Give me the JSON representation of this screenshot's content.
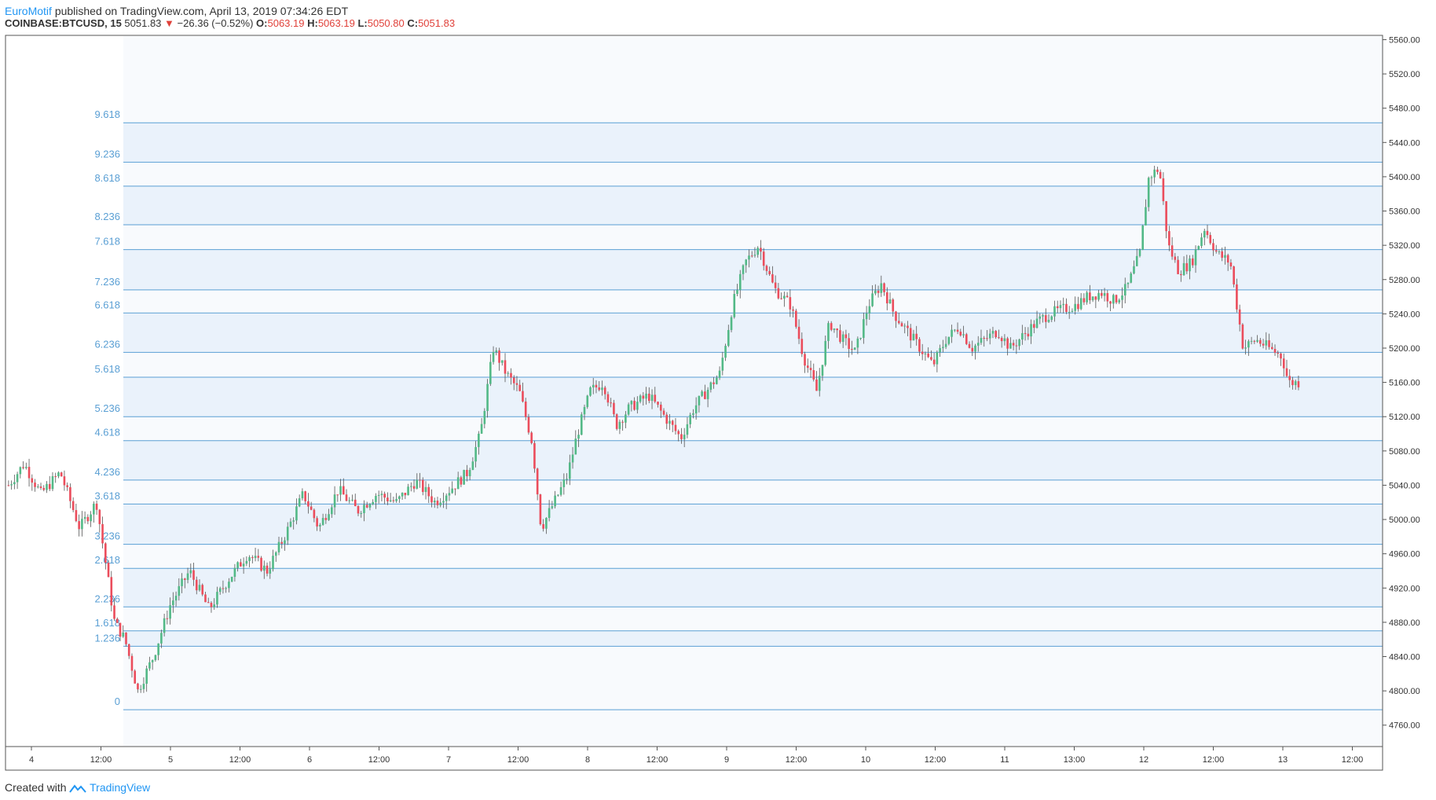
{
  "header": {
    "author": "EuroMotif",
    "published_text": "published on TradingView.com, April 13, 2019 07:34:26 EDT",
    "symbol": "COINBASE:BTCUSD, 15",
    "last_price": "5051.83",
    "change_arrow": "▼",
    "change": "−26.36 (−0.52%)",
    "open_label": "O:",
    "open": "5063.19",
    "high_label": "H:",
    "high": "5063.19",
    "low_label": "L:",
    "low": "5050.80",
    "close_label": "C:",
    "close": "5051.83"
  },
  "footer": {
    "created_with": "Created with",
    "brand": "TradingView"
  },
  "colors": {
    "up": "#53b987",
    "down": "#eb4d5c",
    "fib_line": "#5a9fd4",
    "fib_band": "#eaf2fb",
    "plot_bg": "#f8fafd",
    "axis": "#555555"
  },
  "chart_data": {
    "type": "candlestick",
    "title": "",
    "y_ticks": [
      "5560.00",
      "5520.00",
      "5480.00",
      "5440.00",
      "5400.00",
      "5360.00",
      "5320.00",
      "5280.00",
      "5240.00",
      "5200.00",
      "5160.00",
      "5120.00",
      "5080.00",
      "5040.00",
      "5000.00",
      "4960.00",
      "4920.00",
      "4880.00",
      "4840.00",
      "4800.00",
      "4760.00"
    ],
    "y_range": [
      4735,
      5565
    ],
    "x_ticks": [
      "4",
      "12:00",
      "5",
      "12:00",
      "6",
      "12:00",
      "7",
      "12:00",
      "8",
      "12:00",
      "9",
      "12:00",
      "10",
      "12:00",
      "11",
      "13:00",
      "12",
      "12:00",
      "13",
      "12:00"
    ],
    "fib_levels": [
      {
        "label": "0",
        "price": 4778
      },
      {
        "label": "1.236",
        "price": 4852
      },
      {
        "label": "1.618",
        "price": 4870
      },
      {
        "label": "2.236",
        "price": 4898
      },
      {
        "label": "2.618",
        "price": 4943
      },
      {
        "label": "3.236",
        "price": 4971
      },
      {
        "label": "3.618",
        "price": 5018
      },
      {
        "label": "4.236",
        "price": 5046
      },
      {
        "label": "4.618",
        "price": 5092
      },
      {
        "label": "5.236",
        "price": 5120
      },
      {
        "label": "5.618",
        "price": 5166
      },
      {
        "label": "6.236",
        "price": 5195
      },
      {
        "label": "6.618",
        "price": 5241
      },
      {
        "label": "7.236",
        "price": 5268
      },
      {
        "label": "7.618",
        "price": 5315
      },
      {
        "label": "8.236",
        "price": 5344
      },
      {
        "label": "8.618",
        "price": 5389
      },
      {
        "label": "9.236",
        "price": 5417
      },
      {
        "label": "9.618",
        "price": 5463
      }
    ],
    "price_path": [
      [
        0,
        5040
      ],
      [
        0.012,
        5065
      ],
      [
        0.025,
        5030
      ],
      [
        0.04,
        5055
      ],
      [
        0.055,
        4990
      ],
      [
        0.068,
        5020
      ],
      [
        0.082,
        4880
      ],
      [
        0.09,
        4860
      ],
      [
        0.1,
        4800
      ],
      [
        0.112,
        4840
      ],
      [
        0.125,
        4900
      ],
      [
        0.14,
        4940
      ],
      [
        0.155,
        4895
      ],
      [
        0.17,
        4930
      ],
      [
        0.185,
        4960
      ],
      [
        0.2,
        4940
      ],
      [
        0.215,
        4985
      ],
      [
        0.228,
        5030
      ],
      [
        0.24,
        4990
      ],
      [
        0.255,
        5035
      ],
      [
        0.27,
        5010
      ],
      [
        0.285,
        5030
      ],
      [
        0.3,
        5020
      ],
      [
        0.315,
        5045
      ],
      [
        0.33,
        5020
      ],
      [
        0.345,
        5040
      ],
      [
        0.355,
        5055
      ],
      [
        0.365,
        5100
      ],
      [
        0.375,
        5200
      ],
      [
        0.385,
        5170
      ],
      [
        0.395,
        5150
      ],
      [
        0.405,
        5090
      ],
      [
        0.412,
        4990
      ],
      [
        0.422,
        5020
      ],
      [
        0.432,
        5050
      ],
      [
        0.44,
        5100
      ],
      [
        0.45,
        5150
      ],
      [
        0.46,
        5160
      ],
      [
        0.47,
        5110
      ],
      [
        0.48,
        5130
      ],
      [
        0.495,
        5145
      ],
      [
        0.51,
        5115
      ],
      [
        0.52,
        5095
      ],
      [
        0.53,
        5130
      ],
      [
        0.54,
        5150
      ],
      [
        0.55,
        5170
      ],
      [
        0.56,
        5250
      ],
      [
        0.57,
        5300
      ],
      [
        0.58,
        5320
      ],
      [
        0.592,
        5270
      ],
      [
        0.605,
        5250
      ],
      [
        0.615,
        5190
      ],
      [
        0.625,
        5150
      ],
      [
        0.635,
        5230
      ],
      [
        0.645,
        5210
      ],
      [
        0.655,
        5195
      ],
      [
        0.665,
        5250
      ],
      [
        0.675,
        5275
      ],
      [
        0.685,
        5240
      ],
      [
        0.695,
        5220
      ],
      [
        0.705,
        5200
      ],
      [
        0.715,
        5180
      ],
      [
        0.725,
        5210
      ],
      [
        0.735,
        5225
      ],
      [
        0.745,
        5200
      ],
      [
        0.755,
        5210
      ],
      [
        0.765,
        5220
      ],
      [
        0.775,
        5200
      ],
      [
        0.785,
        5215
      ],
      [
        0.795,
        5230
      ],
      [
        0.805,
        5240
      ],
      [
        0.815,
        5245
      ],
      [
        0.825,
        5250
      ],
      [
        0.835,
        5260
      ],
      [
        0.845,
        5265
      ],
      [
        0.855,
        5255
      ],
      [
        0.865,
        5270
      ],
      [
        0.875,
        5310
      ],
      [
        0.882,
        5400
      ],
      [
        0.89,
        5410
      ],
      [
        0.897,
        5320
      ],
      [
        0.905,
        5290
      ],
      [
        0.915,
        5300
      ],
      [
        0.925,
        5340
      ],
      [
        0.935,
        5310
      ],
      [
        0.945,
        5300
      ],
      [
        0.955,
        5200
      ],
      [
        0.965,
        5210
      ],
      [
        0.975,
        5200
      ],
      [
        0.985,
        5190
      ],
      [
        0.99,
        5160
      ]
    ]
  }
}
